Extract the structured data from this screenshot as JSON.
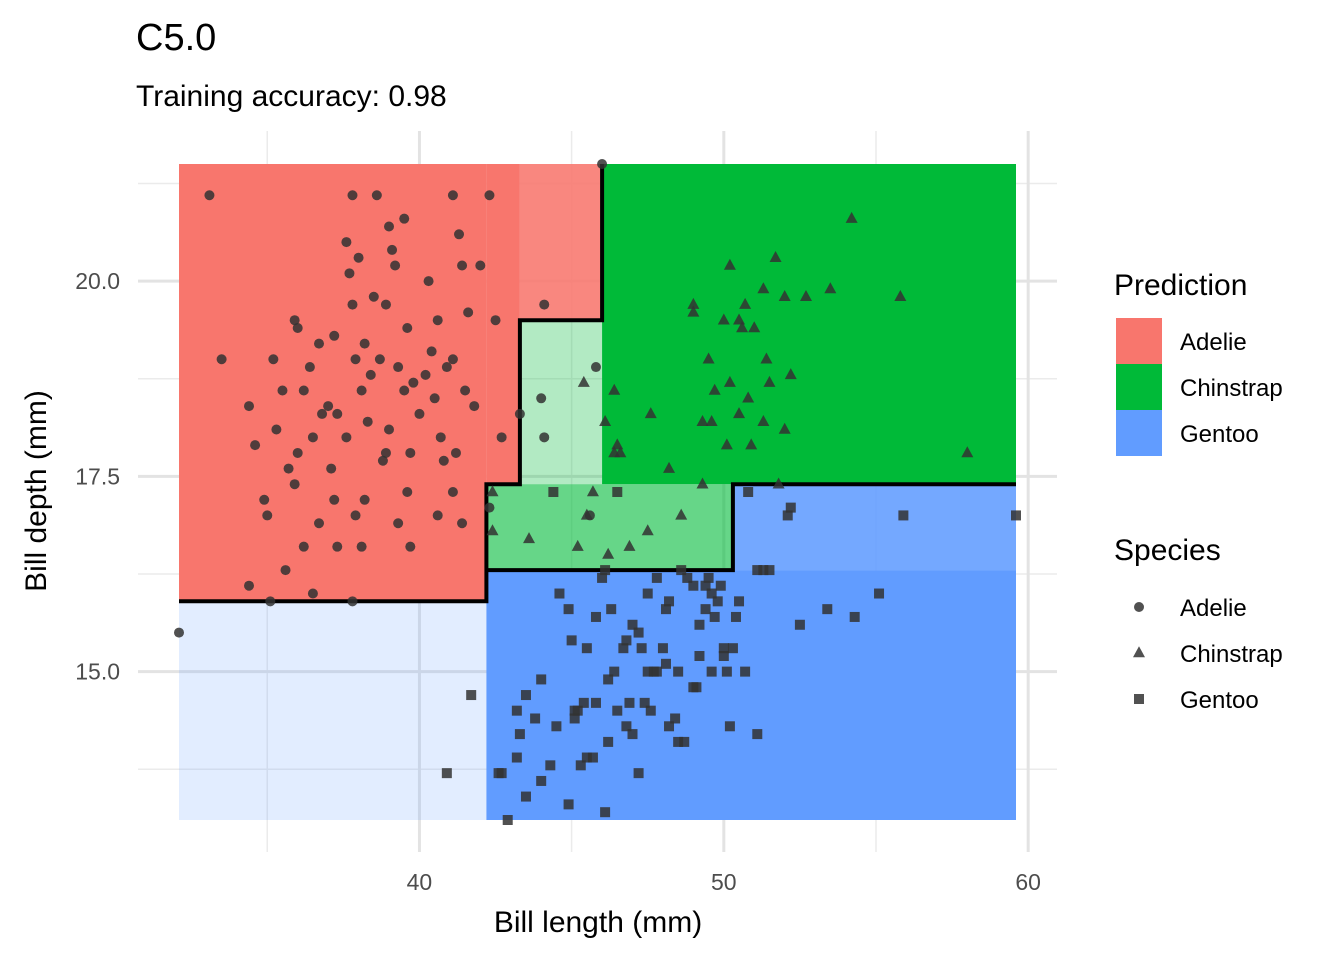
{
  "chart_data": {
    "type": "scatter",
    "title": "C5.0",
    "subtitle": "Training accuracy: 0.98",
    "xlabel": "Bill length (mm)",
    "ylabel": "Bill depth (mm)",
    "xlim": [
      32.1,
      59.6
    ],
    "ylim": [
      13.1,
      21.5
    ],
    "x_ticks": [
      40,
      50,
      60
    ],
    "y_ticks": [
      15.0,
      17.5,
      20.0
    ],
    "grid": true,
    "colors": {
      "Adelie": "#F8766D",
      "Chinstrap": "#00BA38",
      "Gentoo": "#619CFF",
      "boundary": "#000000",
      "points": "#333333"
    },
    "regions": [
      {
        "class": "Adelie",
        "opacity": 1.0,
        "x": [
          32.1,
          42.2
        ],
        "y": [
          15.9,
          21.5
        ]
      },
      {
        "class": "Adelie",
        "opacity": 1.0,
        "x": [
          42.2,
          43.3
        ],
        "y": [
          17.4,
          21.5
        ]
      },
      {
        "class": "Adelie",
        "opacity": 0.88,
        "x": [
          43.3,
          46.0
        ],
        "y": [
          19.5,
          21.5
        ]
      },
      {
        "class": "Chinstrap",
        "opacity": 0.3,
        "x": [
          43.3,
          46.0
        ],
        "y": [
          17.4,
          19.5
        ]
      },
      {
        "class": "Chinstrap",
        "opacity": 1.0,
        "x": [
          46.0,
          59.6
        ],
        "y": [
          17.4,
          21.5
        ]
      },
      {
        "class": "Chinstrap",
        "opacity": 0.6,
        "x": [
          42.2,
          50.3
        ],
        "y": [
          16.3,
          17.4
        ]
      },
      {
        "class": "Gentoo",
        "opacity": 0.88,
        "x": [
          50.3,
          59.6
        ],
        "y": [
          16.3,
          17.4
        ]
      },
      {
        "class": "Gentoo",
        "opacity": 1.0,
        "x": [
          42.2,
          59.6
        ],
        "y": [
          13.1,
          16.3
        ]
      },
      {
        "class": "Gentoo",
        "opacity": 0.18,
        "x": [
          32.1,
          42.2
        ],
        "y": [
          13.1,
          15.9
        ]
      }
    ],
    "boundary": [
      [
        [
          32.1,
          15.9
        ],
        [
          42.2,
          15.9
        ],
        [
          42.2,
          17.4
        ],
        [
          43.3,
          17.4
        ],
        [
          43.3,
          19.5
        ],
        [
          46.0,
          19.5
        ],
        [
          46.0,
          21.5
        ]
      ],
      [
        [
          42.2,
          16.3
        ],
        [
          50.3,
          16.3
        ],
        [
          50.3,
          17.4
        ],
        [
          59.6,
          17.4
        ]
      ]
    ],
    "legends": [
      {
        "title": "Prediction",
        "kind": "fill",
        "entries": [
          "Adelie",
          "Chinstrap",
          "Gentoo"
        ]
      },
      {
        "title": "Species",
        "kind": "shape",
        "entries": [
          "Adelie",
          "Chinstrap",
          "Gentoo"
        ],
        "shapes": [
          "circle",
          "triangle",
          "square"
        ]
      }
    ],
    "series": [
      {
        "name": "Adelie",
        "shape": "circle",
        "points": [
          [
            33.1,
            21.1
          ],
          [
            37.8,
            21.1
          ],
          [
            38.6,
            21.1
          ],
          [
            41.1,
            21.1
          ],
          [
            42.3,
            21.1
          ],
          [
            39.5,
            20.8
          ],
          [
            39.0,
            20.7
          ],
          [
            41.3,
            20.6
          ],
          [
            37.6,
            20.5
          ],
          [
            39.1,
            20.4
          ],
          [
            41.4,
            20.2
          ],
          [
            38.0,
            20.3
          ],
          [
            39.2,
            20.2
          ],
          [
            42.0,
            20.2
          ],
          [
            37.7,
            20.1
          ],
          [
            40.3,
            20.0
          ],
          [
            38.5,
            19.8
          ],
          [
            38.9,
            19.7
          ],
          [
            37.8,
            19.7
          ],
          [
            41.6,
            19.6
          ],
          [
            42.5,
            19.5
          ],
          [
            35.9,
            19.5
          ],
          [
            40.6,
            19.5
          ],
          [
            36.0,
            19.4
          ],
          [
            39.6,
            19.4
          ],
          [
            37.2,
            19.3
          ],
          [
            38.2,
            19.2
          ],
          [
            36.7,
            19.2
          ],
          [
            40.4,
            19.1
          ],
          [
            41.1,
            19.0
          ],
          [
            33.5,
            19.0
          ],
          [
            35.2,
            19.0
          ],
          [
            37.9,
            19.0
          ],
          [
            38.7,
            19.0
          ],
          [
            40.9,
            18.9
          ],
          [
            36.4,
            18.9
          ],
          [
            39.3,
            18.9
          ],
          [
            38.4,
            18.8
          ],
          [
            40.2,
            18.8
          ],
          [
            39.8,
            18.7
          ],
          [
            35.5,
            18.6
          ],
          [
            36.2,
            18.6
          ],
          [
            38.1,
            18.6
          ],
          [
            39.5,
            18.6
          ],
          [
            41.5,
            18.6
          ],
          [
            40.5,
            18.5
          ],
          [
            34.4,
            18.4
          ],
          [
            37.0,
            18.4
          ],
          [
            37.3,
            18.3
          ],
          [
            40.0,
            18.3
          ],
          [
            41.8,
            18.4
          ],
          [
            36.8,
            18.3
          ],
          [
            38.3,
            18.2
          ],
          [
            39.0,
            18.1
          ],
          [
            35.3,
            18.1
          ],
          [
            36.5,
            18.0
          ],
          [
            37.6,
            18.0
          ],
          [
            40.7,
            18.0
          ],
          [
            42.7,
            18.0
          ],
          [
            41.2,
            17.8
          ],
          [
            34.6,
            17.9
          ],
          [
            36.0,
            17.8
          ],
          [
            38.9,
            17.8
          ],
          [
            39.7,
            17.8
          ],
          [
            35.7,
            17.6
          ],
          [
            37.1,
            17.6
          ],
          [
            38.8,
            17.7
          ],
          [
            40.8,
            17.7
          ],
          [
            34.9,
            17.2
          ],
          [
            35.9,
            17.4
          ],
          [
            37.2,
            17.2
          ],
          [
            38.2,
            17.2
          ],
          [
            39.6,
            17.3
          ],
          [
            41.1,
            17.3
          ],
          [
            35.0,
            17.0
          ],
          [
            36.7,
            16.9
          ],
          [
            37.9,
            17.0
          ],
          [
            39.3,
            16.9
          ],
          [
            40.6,
            17.0
          ],
          [
            41.4,
            16.9
          ],
          [
            36.2,
            16.6
          ],
          [
            37.3,
            16.6
          ],
          [
            38.1,
            16.6
          ],
          [
            39.7,
            16.6
          ],
          [
            34.4,
            16.1
          ],
          [
            35.6,
            16.3
          ],
          [
            36.5,
            16.0
          ],
          [
            37.8,
            15.9
          ],
          [
            35.1,
            15.9
          ],
          [
            32.1,
            15.5
          ],
          [
            46.0,
            21.5
          ],
          [
            44.1,
            19.7
          ],
          [
            43.3,
            18.3
          ],
          [
            44.1,
            18.0
          ],
          [
            45.8,
            18.9
          ],
          [
            42.3,
            17.1
          ],
          [
            45.6,
            17.0
          ],
          [
            44.0,
            18.5
          ]
        ]
      },
      {
        "name": "Chinstrap",
        "shape": "triangle",
        "points": [
          [
            46.4,
            17.8
          ],
          [
            46.6,
            17.8
          ],
          [
            46.5,
            17.9
          ],
          [
            47.6,
            18.3
          ],
          [
            46.9,
            16.6
          ],
          [
            47.5,
            16.8
          ],
          [
            46.1,
            18.2
          ],
          [
            46.4,
            18.6
          ],
          [
            45.4,
            18.7
          ],
          [
            48.2,
            17.6
          ],
          [
            48.6,
            17.0
          ],
          [
            49.3,
            17.4
          ],
          [
            45.7,
            17.3
          ],
          [
            43.6,
            16.7
          ],
          [
            42.4,
            16.8
          ],
          [
            45.2,
            16.6
          ],
          [
            46.2,
            16.5
          ],
          [
            49.0,
            19.7
          ],
          [
            49.0,
            19.6
          ],
          [
            50.0,
            19.5
          ],
          [
            50.5,
            19.5
          ],
          [
            51.0,
            19.4
          ],
          [
            49.5,
            19.0
          ],
          [
            50.7,
            19.7
          ],
          [
            51.3,
            19.9
          ],
          [
            51.7,
            20.3
          ],
          [
            52.0,
            19.8
          ],
          [
            52.7,
            19.8
          ],
          [
            53.5,
            19.9
          ],
          [
            55.8,
            19.8
          ],
          [
            54.2,
            20.8
          ],
          [
            50.2,
            20.2
          ],
          [
            51.5,
            18.7
          ],
          [
            49.7,
            18.6
          ],
          [
            50.6,
            19.4
          ],
          [
            50.8,
            18.5
          ],
          [
            51.4,
            19.0
          ],
          [
            52.2,
            18.8
          ],
          [
            49.3,
            18.2
          ],
          [
            50.1,
            17.9
          ],
          [
            50.5,
            18.3
          ],
          [
            51.3,
            18.2
          ],
          [
            52.0,
            18.1
          ],
          [
            49.6,
            18.2
          ],
          [
            50.9,
            17.9
          ],
          [
            58.0,
            17.8
          ],
          [
            42.4,
            17.3
          ],
          [
            45.5,
            17.0
          ],
          [
            51.8,
            17.4
          ],
          [
            50.2,
            18.7
          ]
        ]
      },
      {
        "name": "Gentoo",
        "shape": "square",
        "points": [
          [
            40.9,
            13.7
          ],
          [
            41.7,
            14.7
          ],
          [
            42.7,
            13.7
          ],
          [
            42.6,
            13.7
          ],
          [
            43.2,
            13.9
          ],
          [
            42.9,
            13.1
          ],
          [
            43.5,
            13.4
          ],
          [
            43.3,
            14.2
          ],
          [
            43.2,
            14.5
          ],
          [
            43.8,
            14.4
          ],
          [
            44.0,
            13.6
          ],
          [
            44.5,
            14.3
          ],
          [
            44.9,
            13.3
          ],
          [
            45.1,
            14.5
          ],
          [
            45.0,
            15.4
          ],
          [
            45.2,
            14.5
          ],
          [
            45.3,
            13.8
          ],
          [
            45.5,
            13.9
          ],
          [
            45.7,
            13.9
          ],
          [
            45.4,
            14.6
          ],
          [
            45.8,
            14.6
          ],
          [
            46.1,
            13.2
          ],
          [
            46.2,
            14.1
          ],
          [
            46.4,
            15.0
          ],
          [
            46.5,
            14.5
          ],
          [
            46.7,
            15.3
          ],
          [
            46.8,
            14.3
          ],
          [
            46.9,
            14.6
          ],
          [
            47.0,
            14.2
          ],
          [
            47.2,
            13.7
          ],
          [
            47.3,
            15.3
          ],
          [
            47.4,
            14.6
          ],
          [
            47.5,
            15.0
          ],
          [
            47.6,
            14.5
          ],
          [
            47.7,
            15.0
          ],
          [
            47.8,
            15.0
          ],
          [
            48.1,
            15.1
          ],
          [
            48.2,
            14.3
          ],
          [
            48.4,
            14.4
          ],
          [
            48.5,
            14.1
          ],
          [
            48.7,
            14.1
          ],
          [
            48.8,
            16.2
          ],
          [
            49.0,
            16.1
          ],
          [
            49.1,
            14.8
          ],
          [
            49.2,
            15.2
          ],
          [
            49.4,
            15.8
          ],
          [
            49.5,
            16.2
          ],
          [
            49.6,
            15.0
          ],
          [
            49.8,
            15.9
          ],
          [
            49.9,
            16.1
          ],
          [
            50.0,
            15.2
          ],
          [
            50.1,
            15.0
          ],
          [
            50.2,
            14.3
          ],
          [
            50.4,
            15.7
          ],
          [
            50.5,
            15.9
          ],
          [
            50.7,
            15.0
          ],
          [
            50.8,
            17.3
          ],
          [
            51.1,
            16.3
          ],
          [
            51.3,
            16.3
          ],
          [
            51.5,
            16.3
          ],
          [
            52.1,
            17.0
          ],
          [
            52.2,
            17.1
          ],
          [
            52.5,
            15.6
          ],
          [
            53.4,
            15.8
          ],
          [
            54.3,
            15.7
          ],
          [
            55.1,
            16.0
          ],
          [
            55.9,
            17.0
          ],
          [
            59.6,
            17.0
          ],
          [
            51.1,
            14.2
          ],
          [
            50.0,
            15.3
          ],
          [
            46.5,
            17.3
          ],
          [
            44.4,
            17.3
          ],
          [
            46.1,
            16.3
          ],
          [
            49.6,
            16.0
          ],
          [
            48.5,
            15.0
          ],
          [
            47.2,
            15.5
          ],
          [
            46.3,
            15.8
          ],
          [
            45.5,
            15.3
          ],
          [
            48.1,
            15.8
          ],
          [
            49.2,
            15.6
          ],
          [
            44.9,
            15.8
          ],
          [
            43.5,
            14.7
          ],
          [
            44.3,
            13.8
          ],
          [
            44.0,
            14.9
          ],
          [
            45.1,
            14.4
          ],
          [
            46.2,
            14.9
          ],
          [
            47.0,
            15.6
          ],
          [
            48.0,
            15.3
          ],
          [
            49.0,
            14.8
          ],
          [
            50.3,
            15.3
          ],
          [
            47.8,
            16.2
          ],
          [
            48.6,
            16.3
          ],
          [
            49.4,
            16.1
          ],
          [
            46.8,
            15.4
          ],
          [
            45.8,
            15.7
          ],
          [
            44.6,
            16.0
          ],
          [
            46.0,
            16.2
          ],
          [
            47.5,
            16.0
          ],
          [
            48.2,
            15.9
          ],
          [
            49.7,
            15.7
          ]
        ]
      }
    ]
  }
}
